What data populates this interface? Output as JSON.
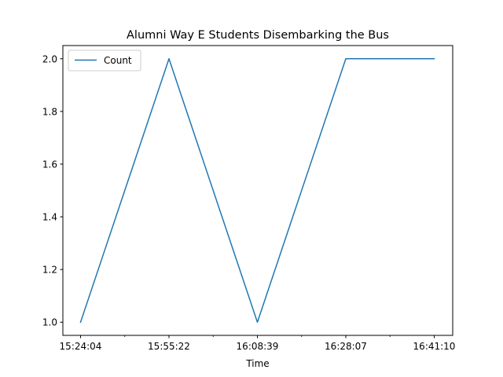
{
  "chart_data": {
    "type": "line",
    "title": "Alumni Way E Students Disembarking the Bus",
    "xlabel": "Time",
    "ylabel": "",
    "x": [
      "15:24:04",
      "15:55:22",
      "16:08:39",
      "16:28:07",
      "16:41:10"
    ],
    "series": [
      {
        "name": "Count",
        "values": [
          1.0,
          2.0,
          1.0,
          2.0,
          2.0
        ],
        "color": "#1f77b4"
      }
    ],
    "ylim": [
      0.95,
      2.05
    ],
    "yticks": [
      "1.0",
      "1.2",
      "1.4",
      "1.6",
      "1.8",
      "2.0"
    ],
    "grid": false,
    "legend_position": "upper-left"
  }
}
